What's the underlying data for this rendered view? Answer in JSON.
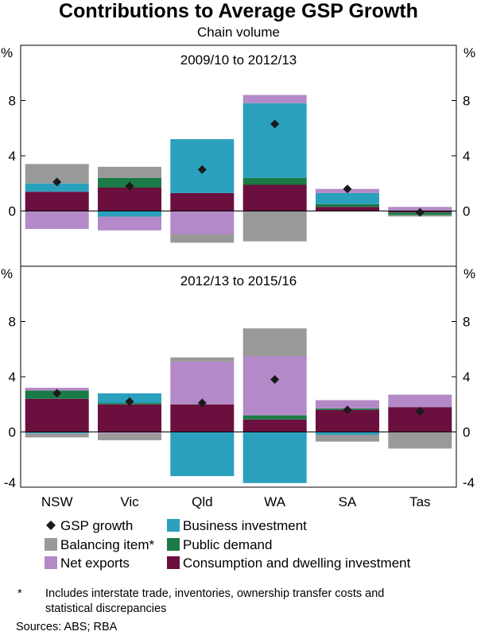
{
  "title": "Contributions to Average GSP Growth",
  "subtitle": "Chain volume",
  "chart_data": {
    "type": "bar",
    "stacked": true,
    "categories": [
      "NSW",
      "Vic",
      "Qld",
      "WA",
      "SA",
      "Tas"
    ],
    "unit_label": "%",
    "colors": {
      "consumption": "#6b0f3f",
      "public": "#1b7a45",
      "business": "#2ba0bd",
      "net_exports": "#b38ac7",
      "balancing": "#999999",
      "gsp_marker": "#1a1a1a"
    },
    "panels": [
      {
        "title": "2009/10 to 2012/13",
        "ylim": [
          -4,
          12
        ],
        "yticks": [
          0,
          4,
          8
        ],
        "series": [
          {
            "key": "consumption",
            "name": "Consumption and dwelling investment",
            "values": [
              1.4,
              1.7,
              1.3,
              1.9,
              0.3,
              -0.1
            ]
          },
          {
            "key": "public",
            "name": "Public demand",
            "values": [
              0.0,
              0.7,
              0.0,
              0.5,
              0.2,
              -0.2
            ]
          },
          {
            "key": "business",
            "name": "Business investment",
            "values": [
              0.6,
              -0.4,
              3.9,
              5.4,
              0.8,
              0.0
            ]
          },
          {
            "key": "net_exports",
            "name": "Net exports",
            "values": [
              -1.3,
              -1.0,
              -1.7,
              0.6,
              0.3,
              0.3
            ]
          },
          {
            "key": "balancing",
            "name": "Balancing item*",
            "values": [
              1.4,
              0.8,
              -0.6,
              -2.2,
              0.0,
              -0.1
            ]
          }
        ],
        "gsp_growth": [
          2.1,
          1.8,
          3.0,
          6.3,
          1.6,
          -0.1
        ]
      },
      {
        "title": "2012/13 to 2015/16",
        "ylim": [
          -4,
          12
        ],
        "yticks": [
          -4,
          0,
          4,
          8
        ],
        "series": [
          {
            "key": "consumption",
            "name": "Consumption and dwelling investment",
            "values": [
              2.4,
              2.0,
              2.0,
              0.9,
              1.6,
              1.8
            ]
          },
          {
            "key": "public",
            "name": "Public demand",
            "values": [
              0.6,
              0.1,
              0.0,
              0.3,
              0.1,
              0.0
            ]
          },
          {
            "key": "business",
            "name": "Business investment",
            "values": [
              -0.1,
              0.7,
              -3.2,
              -3.7,
              -0.2,
              0.0
            ]
          },
          {
            "key": "net_exports",
            "name": "Net exports",
            "values": [
              0.2,
              -0.1,
              3.1,
              4.3,
              0.6,
              0.9
            ]
          },
          {
            "key": "balancing",
            "name": "Balancing item*",
            "values": [
              -0.3,
              -0.5,
              0.3,
              2.0,
              -0.5,
              -1.2
            ]
          }
        ],
        "gsp_growth": [
          2.8,
          2.2,
          2.1,
          3.8,
          1.6,
          1.5
        ]
      }
    ],
    "legend": [
      {
        "key": "gsp_marker",
        "label": "GSP growth",
        "kind": "diamond"
      },
      {
        "key": "business",
        "label": "Business investment",
        "kind": "box"
      },
      {
        "key": "balancing",
        "label": "Balancing item*",
        "kind": "box"
      },
      {
        "key": "public",
        "label": "Public demand",
        "kind": "box"
      },
      {
        "key": "net_exports",
        "label": "Net exports",
        "kind": "box"
      },
      {
        "key": "consumption",
        "label": "Consumption and dwelling investment",
        "kind": "box"
      }
    ]
  },
  "footnote": {
    "marker": "*",
    "line1": "Includes interstate trade, inventories, ownership transfer costs and",
    "line2": "statistical discrepancies"
  },
  "sources": "Sources: ABS; RBA"
}
